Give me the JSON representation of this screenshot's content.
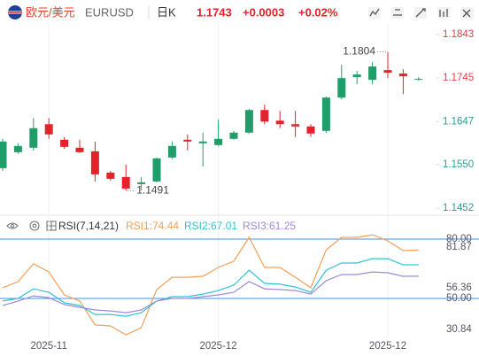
{
  "header": {
    "pair_name": "欧元/美元",
    "symbol": "EURUSD",
    "period": "日K",
    "price": "1.1743",
    "change": "+0.0003",
    "change_pct": "+0.02%"
  },
  "chart_data": [
    {
      "type": "candlestick",
      "categories": [
        null,
        null,
        null,
        "2025-11",
        null,
        null,
        null,
        null,
        null,
        null,
        null,
        null,
        null,
        null,
        "2025-12",
        null,
        null,
        null,
        null,
        null,
        null,
        null,
        null,
        null,
        null,
        "2025-12",
        null,
        null
      ],
      "open": [
        1.1542,
        1.1578,
        1.1588,
        1.1641,
        1.1606,
        1.1588,
        1.158,
        1.1532,
        1.1522,
        1.1506,
        1.1512,
        1.1566,
        1.1606,
        1.1598,
        1.1594,
        1.1608,
        1.1622,
        1.1673,
        1.1649,
        1.1641,
        1.1636,
        1.1626,
        1.1701,
        1.1747,
        1.1741,
        1.1763,
        1.1755,
        1.1741
      ],
      "high": [
        1.1608,
        1.1598,
        1.1655,
        1.1655,
        1.1612,
        1.1606,
        1.1602,
        1.1536,
        1.155,
        1.1522,
        1.1566,
        1.1602,
        1.1618,
        1.1622,
        1.1651,
        1.1626,
        1.1675,
        1.1685,
        1.1671,
        1.1671,
        1.1641,
        1.1703,
        1.1775,
        1.1761,
        1.1781,
        1.1804,
        1.1765,
        1.1747
      ],
      "low": [
        1.1536,
        1.1574,
        1.1582,
        1.1608,
        1.1586,
        1.1576,
        1.1512,
        1.1514,
        1.1491,
        1.1492,
        1.151,
        1.1562,
        1.1582,
        1.1546,
        1.1592,
        1.1606,
        1.162,
        1.1641,
        1.1632,
        1.1612,
        1.1612,
        1.1622,
        1.1697,
        1.1731,
        1.1731,
        1.1745,
        1.1709,
        1.1739
      ],
      "close": [
        1.1602,
        1.1592,
        1.1632,
        1.1618,
        1.159,
        1.1578,
        1.1528,
        1.1518,
        1.1496,
        1.151,
        1.1564,
        1.1592,
        1.1602,
        1.1602,
        1.1608,
        1.1622,
        1.1673,
        1.1647,
        1.1641,
        1.1636,
        1.162,
        1.1701,
        1.1745,
        1.1753,
        1.1771,
        1.1757,
        1.1749,
        1.1743
      ],
      "up_color": "#1f9e6a",
      "down_color": "#e5222b",
      "ylim": [
        1.1438,
        1.1865
      ],
      "yticks": [
        1.1843,
        1.1745,
        1.1647,
        {
          "value": 1.155,
          "label": "1.1550"
        },
        1.1452
      ],
      "high_label": "1.1804",
      "low_label": "1.1491"
    },
    {
      "type": "line",
      "title": "RSI(7,14,21)",
      "series": [
        {
          "name": "RSI1:74.44",
          "color": "#f4a05a",
          "values": [
            55.4,
            58.5,
            67.5,
            63.4,
            51.8,
            48.7,
            36.6,
            36.1,
            31.6,
            35.2,
            54.5,
            60.7,
            60.7,
            61.2,
            65.7,
            68.8,
            80.9,
            65.7,
            65.7,
            60.7,
            55.4,
            74.6,
            80.9,
            80.9,
            82.2,
            79.1,
            74.2,
            74.44
          ]
        },
        {
          "name": "RSI2:67.01",
          "color": "#35c2d2",
          "values": [
            48.7,
            50.0,
            54.9,
            53.1,
            47.8,
            46.4,
            41.9,
            41.9,
            41.0,
            42.8,
            48.7,
            50.9,
            50.9,
            52.2,
            54.0,
            56.7,
            64.3,
            57.6,
            57.2,
            55.8,
            53.1,
            64.3,
            67.9,
            67.9,
            70.1,
            70.1,
            67.0,
            67.01
          ]
        },
        {
          "name": "RSI3:61.25",
          "color": "#9f8ad9",
          "values": [
            46.4,
            48.7,
            51.3,
            50.4,
            46.9,
            45.5,
            44.2,
            43.7,
            42.8,
            44.2,
            48.7,
            50.0,
            50.0,
            50.9,
            51.8,
            53.1,
            58.5,
            54.9,
            54.5,
            54.0,
            52.2,
            59.0,
            62.1,
            62.1,
            63.4,
            63.0,
            61.2,
            61.25
          ]
        }
      ],
      "ylim": [
        28.5,
        82.7
      ],
      "yticks": [
        {
          "value": 80,
          "label": "80.00"
        },
        {
          "value": 50,
          "label": "50.00"
        }
      ],
      "level_color": "#4a8fd9",
      "range_labels": [
        "81.87",
        "56.36",
        "30.84"
      ]
    }
  ]
}
